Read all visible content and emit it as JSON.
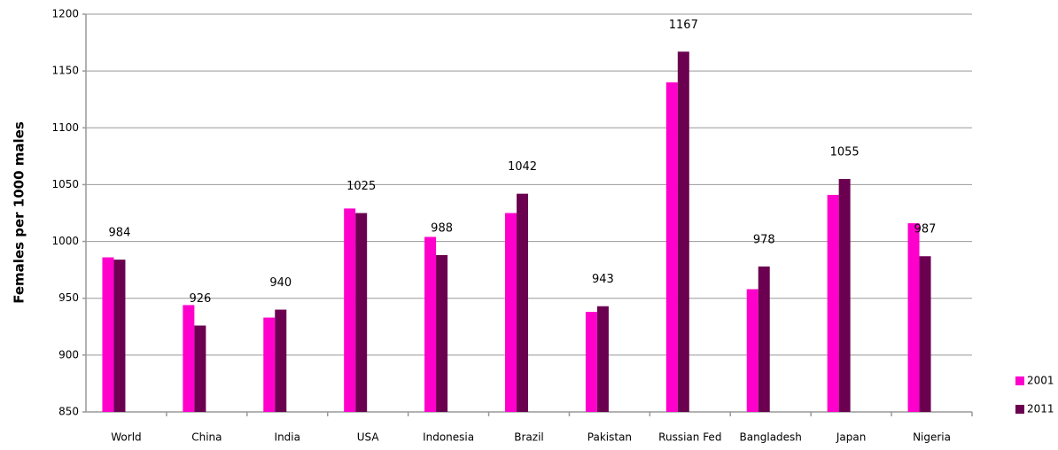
{
  "chart_data": {
    "type": "bar",
    "y_label": "Females per 1000 males",
    "categories": [
      "World",
      "China",
      "India",
      "USA",
      "Indonesia",
      "Brazil",
      "Pakistan",
      "Russian Fed",
      "Bangladesh",
      "Japan",
      "Nigeria"
    ],
    "series": [
      {
        "name": "2001",
        "color": "#ff00cc",
        "values": [
          986,
          944,
          933,
          1029,
          1004,
          1025,
          938,
          1140,
          958,
          1041,
          1016
        ],
        "show_labels": false
      },
      {
        "name": "2011",
        "color": "#6b0050",
        "values": [
          984,
          926,
          940,
          1025,
          988,
          1042,
          943,
          1167,
          978,
          1055,
          987
        ],
        "show_labels": true
      }
    ],
    "ylim": [
      850,
      1200
    ],
    "yticks": [
      850,
      900,
      950,
      1000,
      1050,
      1100,
      1150,
      1200
    ],
    "grid": true,
    "legend": "bottom-right"
  }
}
